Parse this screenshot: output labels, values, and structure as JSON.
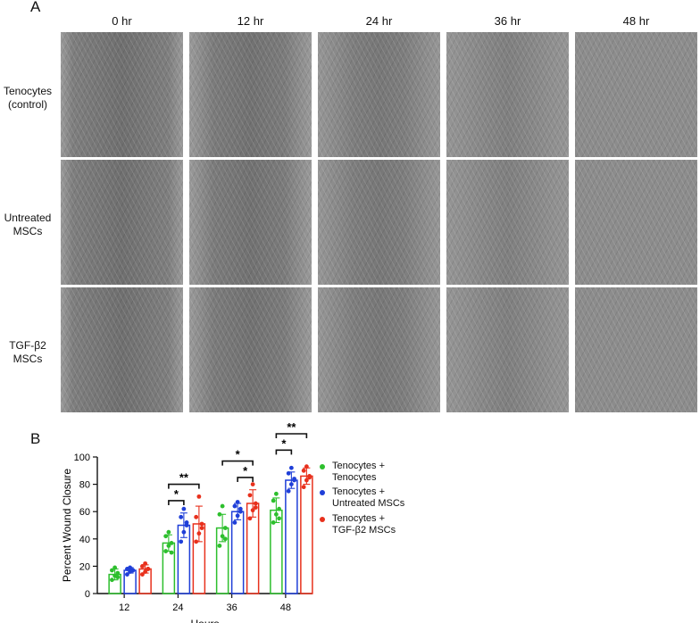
{
  "panel_a_letter": "A",
  "panel_b_letter": "B",
  "timepoints": [
    "0 hr",
    "12 hr",
    "24 hr",
    "36 hr",
    "48 hr"
  ],
  "rows": [
    {
      "line1": "Tenocytes",
      "line2": "(control)"
    },
    {
      "line1": "Untreated",
      "line2": "MSCs"
    },
    {
      "line1": "TGF-β2",
      "line2": "MSCs"
    }
  ],
  "legend": [
    {
      "line1": "Tenocytes +",
      "line2": "Tenocytes",
      "color": "#2dbf2d"
    },
    {
      "line1": "Tenocytes +",
      "line2": "Untreated MSCs",
      "color": "#1f3fd8"
    },
    {
      "line1": "Tenocytes +",
      "line2": "TGF-β2 MSCs",
      "color": "#e8301c"
    }
  ],
  "chart_data": {
    "type": "bar",
    "xlabel": "Hours",
    "ylabel": "Percent Wound Closure",
    "ylim": [
      0,
      100
    ],
    "yticks": [
      "0",
      "20",
      "40",
      "60",
      "80",
      "100"
    ],
    "categories": [
      "12",
      "24",
      "36",
      "48"
    ],
    "series": [
      {
        "name": "Tenocytes + Tenocytes",
        "color": "#2dbf2d",
        "values": [
          14,
          37,
          48,
          61
        ],
        "err": [
          4,
          6,
          10,
          9
        ],
        "points": [
          [
            10,
            13,
            15,
            17,
            19,
            12
          ],
          [
            31,
            35,
            37,
            42,
            45,
            30
          ],
          [
            35,
            42,
            48,
            58,
            64,
            40
          ],
          [
            52,
            58,
            62,
            68,
            73,
            55
          ]
        ]
      },
      {
        "name": "Tenocytes + Untreated MSCs",
        "color": "#1f3fd8",
        "values": [
          17,
          50,
          60,
          83
        ],
        "err": [
          2,
          9,
          6,
          6
        ],
        "points": [
          [
            14,
            16,
            17,
            18,
            19,
            17
          ],
          [
            38,
            45,
            50,
            56,
            62,
            52
          ],
          [
            52,
            57,
            60,
            64,
            67,
            62
          ],
          [
            75,
            80,
            83,
            88,
            92,
            84
          ]
        ]
      },
      {
        "name": "Tenocytes + TGF-β2 MSCs",
        "color": "#e8301c",
        "values": [
          18,
          51,
          66,
          86
        ],
        "err": [
          3,
          13,
          10,
          6
        ],
        "points": [
          [
            14,
            16,
            18,
            20,
            22,
            18
          ],
          [
            38,
            44,
            51,
            56,
            71,
            48
          ],
          [
            55,
            61,
            66,
            72,
            80,
            63
          ],
          [
            78,
            83,
            86,
            90,
            93,
            85
          ]
        ]
      }
    ],
    "significance": [
      {
        "hour": "24",
        "from": 0,
        "to": 1,
        "label": "*",
        "y": 68
      },
      {
        "hour": "24",
        "from": 0,
        "to": 2,
        "label": "**",
        "y": 80
      },
      {
        "hour": "36",
        "from": 1,
        "to": 2,
        "label": "*",
        "y": 85
      },
      {
        "hour": "36",
        "from": 0,
        "to": 2,
        "label": "*",
        "y": 97
      },
      {
        "hour": "48",
        "from": 0,
        "to": 1,
        "label": "*",
        "y": 105
      },
      {
        "hour": "48",
        "from": 0,
        "to": 2,
        "label": "**",
        "y": 117
      }
    ]
  }
}
